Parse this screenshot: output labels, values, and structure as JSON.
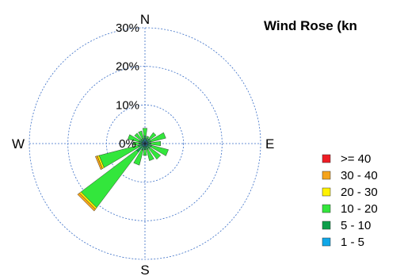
{
  "chart_data": {
    "type": "wind-rose",
    "title": "Wind Rose (kn",
    "directions": [
      "N",
      "NNE",
      "NE",
      "ENE",
      "E",
      "ESE",
      "SE",
      "SSE",
      "S",
      "SSW",
      "SW",
      "WSW",
      "W",
      "WNW",
      "NW",
      "NNW"
    ],
    "direction_angles_deg": [
      0,
      22.5,
      45,
      67.5,
      90,
      112.5,
      135,
      157.5,
      180,
      202.5,
      225,
      247.5,
      270,
      292.5,
      315,
      337.5
    ],
    "compass_labels": {
      "north": "N",
      "east": "E",
      "south": "S",
      "west": "W"
    },
    "radial_unit": "%",
    "radial_ticks": [
      {
        "value": 0,
        "label": "0%"
      },
      {
        "value": 10,
        "label": "10%"
      },
      {
        "value": 20,
        "label": "20%"
      },
      {
        "value": 30,
        "label": "30%"
      }
    ],
    "rmax": 30,
    "grid": true,
    "legend_position": "right",
    "series": [
      {
        "name": "1 - 5",
        "color": "#10A7E8",
        "values": [
          1.2,
          0.8,
          0.8,
          0.8,
          0.8,
          0.8,
          0.8,
          0.8,
          0.8,
          0.8,
          0.8,
          0.8,
          0.8,
          0.8,
          0.8,
          0.8
        ]
      },
      {
        "name": "5 - 10",
        "color": "#0C9E4A",
        "values": [
          0.8,
          0.6,
          0.8,
          0.8,
          0.8,
          1.0,
          0.8,
          0.8,
          0.8,
          1.0,
          2.0,
          1.0,
          0.8,
          0.8,
          0.6,
          0.6
        ]
      },
      {
        "name": "10 - 20",
        "color": "#33E63C",
        "values": [
          2.0,
          0.6,
          2.0,
          4.0,
          2.5,
          4.5,
          3.5,
          3.0,
          1.5,
          4.0,
          18.0,
          10.5,
          1.5,
          3.0,
          2.0,
          2.0
        ]
      },
      {
        "name": "20 - 30",
        "color": "#FFF200",
        "values": [
          0,
          0,
          0,
          0,
          0,
          0,
          0,
          0,
          0,
          0,
          0.5,
          0.5,
          0,
          0,
          0,
          0
        ]
      },
      {
        "name": "30 - 40",
        "color": "#F5A31C",
        "values": [
          0,
          0,
          0,
          0,
          0,
          0,
          0,
          0,
          0,
          0,
          0.6,
          0.5,
          0,
          0,
          0,
          0
        ]
      },
      {
        "name": ">= 40",
        "color": "#EE1C24",
        "values": [
          0,
          0,
          0,
          0,
          0,
          0,
          0,
          0,
          0,
          0,
          0,
          0,
          0,
          0,
          0,
          0
        ]
      }
    ]
  }
}
